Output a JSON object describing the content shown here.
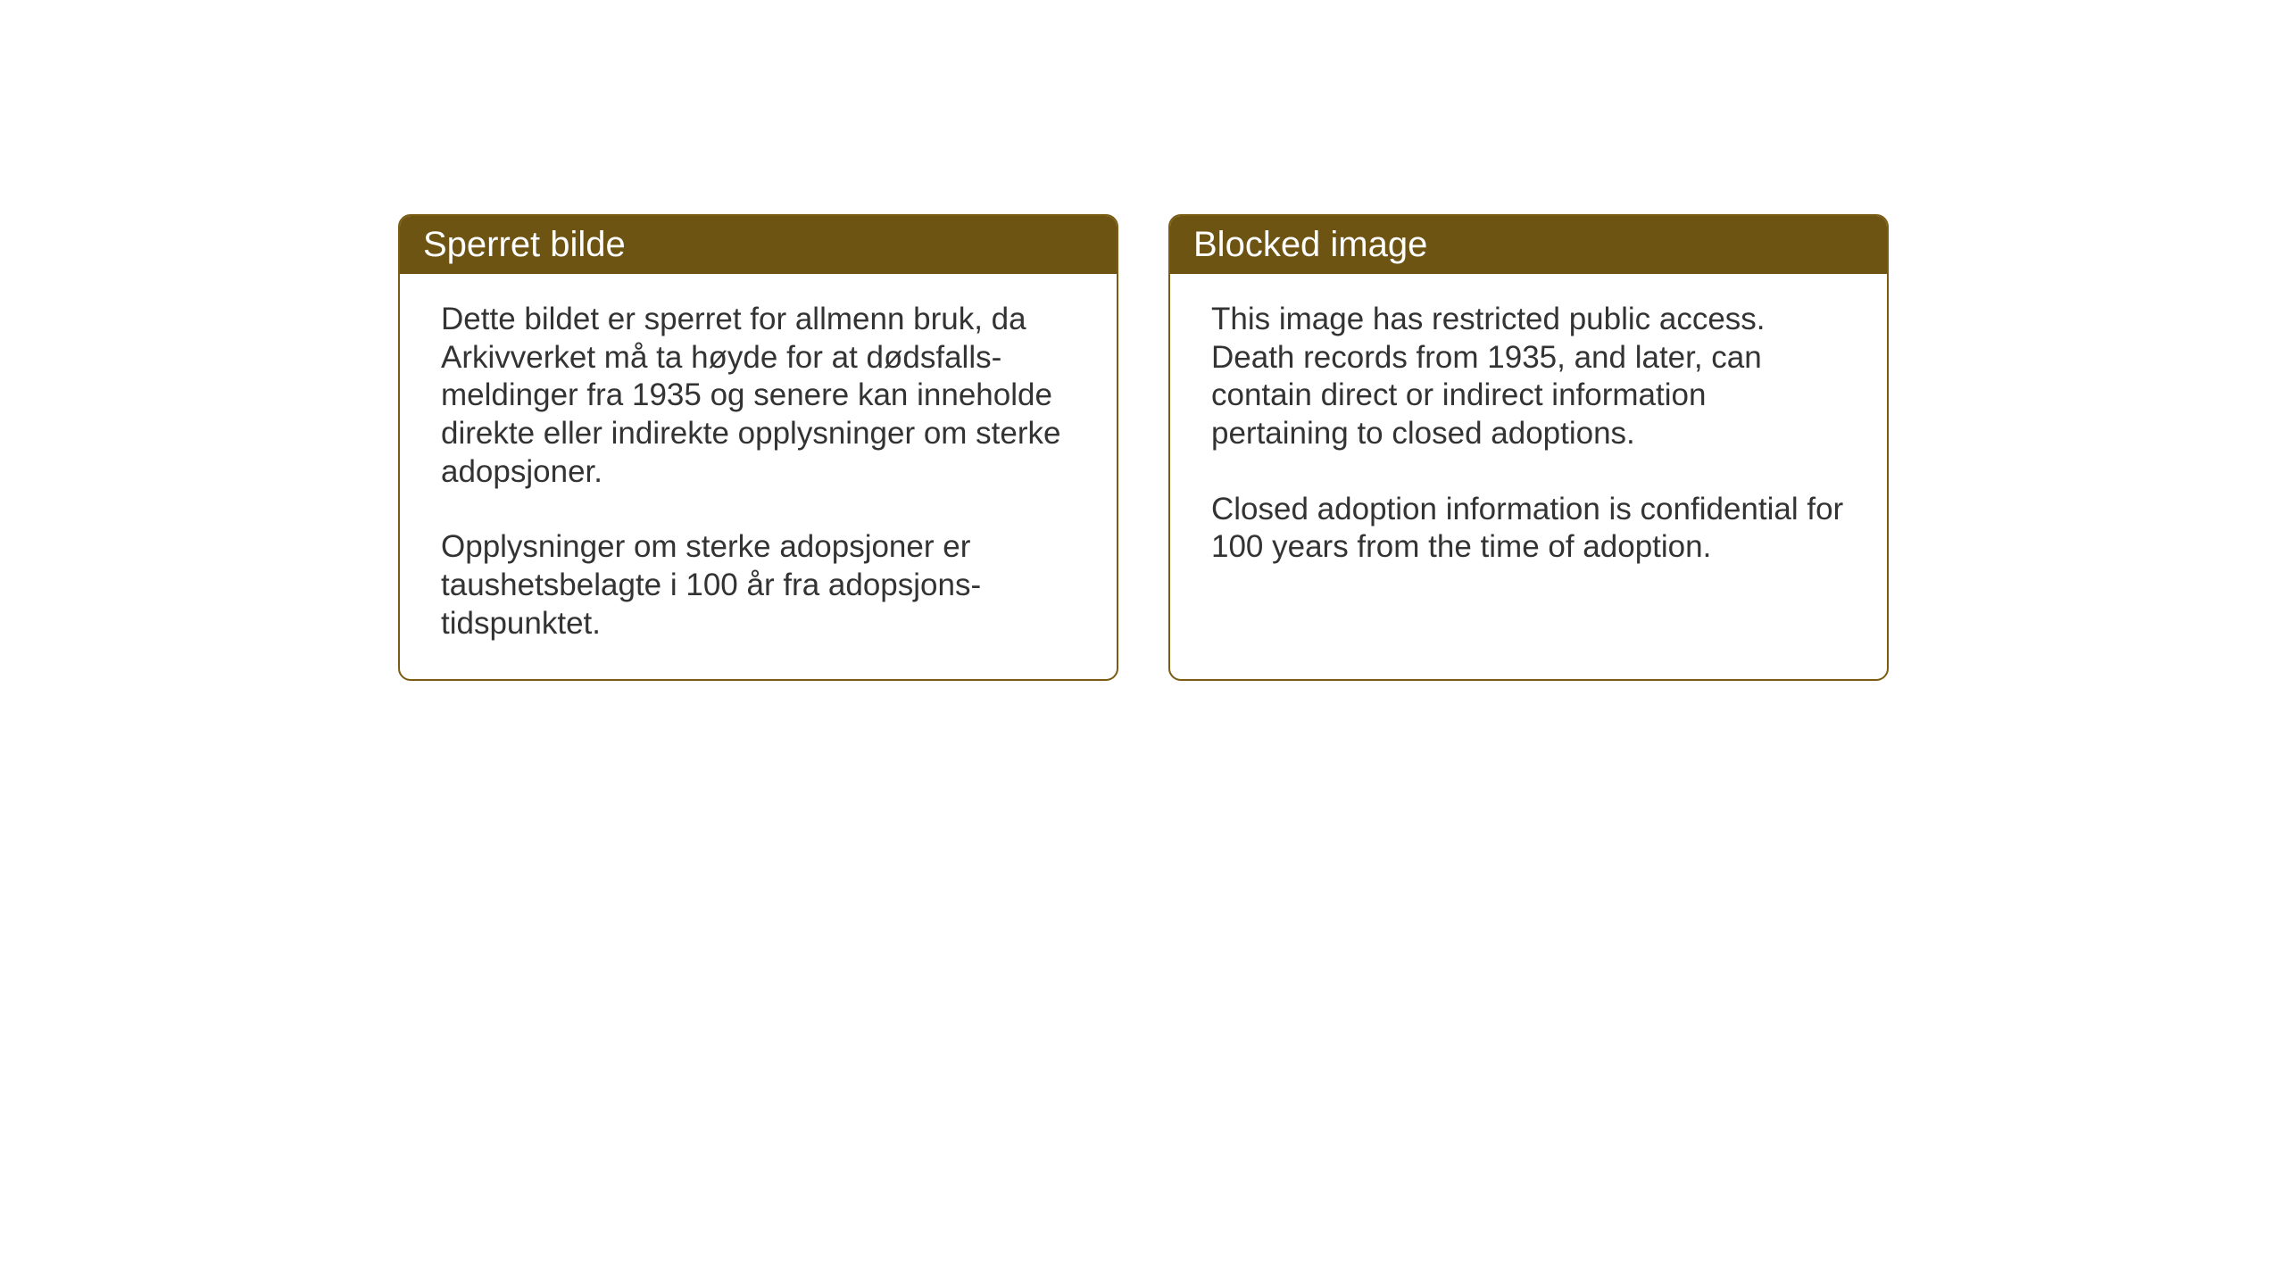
{
  "layout": {
    "background_color": "#ffffff",
    "card_border_color": "#7a5c13",
    "card_border_radius": 14,
    "header_background": "#6e5413",
    "header_text_color": "#ffffff",
    "body_text_color": "#333333",
    "header_fontsize": 40,
    "body_fontsize": 35
  },
  "cards": {
    "norwegian": {
      "title": "Sperret bilde",
      "paragraph1": "Dette bildet er sperret for allmenn bruk, da Arkivverket må ta høyde for at dødsfalls-meldinger fra 1935 og senere kan inneholde direkte eller indirekte opplysninger om sterke adopsjoner.",
      "paragraph2": "Opplysninger om sterke adopsjoner er taushetsbelagte i 100 år fra adopsjons-tidspunktet."
    },
    "english": {
      "title": "Blocked image",
      "paragraph1": "This image has restricted public access. Death records from 1935, and later, can contain direct or indirect information pertaining to closed adoptions.",
      "paragraph2": "Closed adoption information is confidential for 100 years from the time of adoption."
    }
  }
}
